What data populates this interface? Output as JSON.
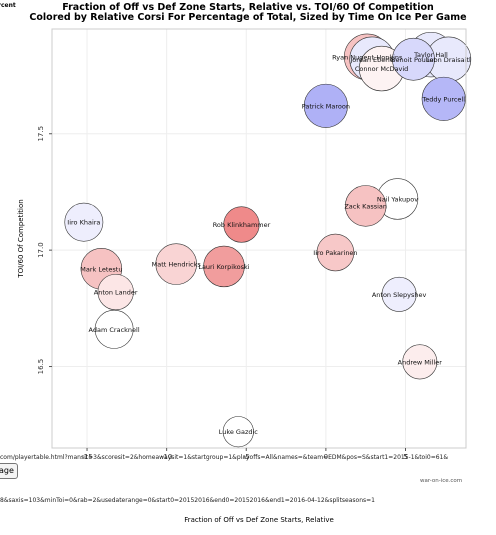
{
  "page": {
    "title_line1": "Fraction of Off vs Def Zone Starts, Relative vs. TOI/60 Of Competition",
    "title_line2": "Colored by Relative Corsi For Percentage of Total, Sized by Time On Ice Per Game",
    "legend_fragment": "rcent",
    "url_line1": "com/playertable.html?mansit=3&scoresit=2&homeawaysit=1&startgroup=1&playoffs=All&names=&team=EDM&pos=S&start1=2015-1&toi0=61&",
    "url_line2": "8&saxis=103&minToi=0&rab=2&usedaterange=0&start0=20152016&end0=20152016&end1=2016-04-12&splitseasons=1",
    "button_text": "age",
    "credit": "war-on-ice.com"
  },
  "chart_data": {
    "type": "scatter",
    "title": "Fraction of Off vs Def Zone Starts, Relative vs. TOI/60 Of Competition",
    "subtitle": "Colored by Relative Corsi For Percentage of Total, Sized by Time On Ice Per Game",
    "xlabel": "Fraction of Off vs Def Zone Starts, Relative",
    "ylabel": "TOI/60 Of Competition",
    "xlim": [
      -17.2,
      8.8
    ],
    "ylim": [
      16.15,
      17.95
    ],
    "xticks": [
      -15,
      -10,
      -5,
      0,
      5
    ],
    "yticks": [
      16.5,
      17.0,
      17.5
    ],
    "colors": {
      "positive": "#2f35e8",
      "negative": "#e02020",
      "neutral": "#ffffff"
    },
    "points": [
      {
        "name": "Ryan Nugent-Hopkins",
        "x": 2.6,
        "y": 17.83,
        "corsi": -0.5,
        "size": 1.0
      },
      {
        "name": "Jordan Eberle",
        "x": 2.9,
        "y": 17.82,
        "corsi": 0.2,
        "size": 0.95
      },
      {
        "name": "Connor McDavid",
        "x": 3.5,
        "y": 17.78,
        "corsi": -0.1,
        "size": 0.95
      },
      {
        "name": "Benoit Pouliot",
        "x": 5.5,
        "y": 17.82,
        "corsi": 0.35,
        "size": 0.85
      },
      {
        "name": "Taylor Hall",
        "x": 6.6,
        "y": 17.84,
        "corsi": 0.2,
        "size": 0.95
      },
      {
        "name": "Leon Draisaitl",
        "x": 7.7,
        "y": 17.82,
        "corsi": 0.2,
        "size": 0.95
      },
      {
        "name": "Teddy Purcell",
        "x": 7.4,
        "y": 17.65,
        "corsi": 0.65,
        "size": 0.9
      },
      {
        "name": "Patrick Maroon",
        "x": 0.0,
        "y": 17.62,
        "corsi": 0.7,
        "size": 0.9
      },
      {
        "name": "Nail Yakupov",
        "x": 4.5,
        "y": 17.22,
        "corsi": 0.0,
        "size": 0.8
      },
      {
        "name": "Zack Kassian",
        "x": 2.5,
        "y": 17.19,
        "corsi": -0.5,
        "size": 0.8
      },
      {
        "name": "Rob Klinkhammer",
        "x": -5.3,
        "y": 17.11,
        "corsi": -0.95,
        "size": 0.6
      },
      {
        "name": "Iiro Pakarinen",
        "x": 0.6,
        "y": 16.99,
        "corsi": -0.45,
        "size": 0.65
      },
      {
        "name": "Anton Slepyshev",
        "x": 4.6,
        "y": 16.81,
        "corsi": 0.15,
        "size": 0.55
      },
      {
        "name": "Andrew Miller",
        "x": 5.9,
        "y": 16.52,
        "corsi": -0.15,
        "size": 0.55
      },
      {
        "name": "Luke Gazdic",
        "x": -5.5,
        "y": 16.22,
        "corsi": 0.0,
        "size": 0.4
      },
      {
        "name": "Iiro Khaira",
        "x": -15.2,
        "y": 17.12,
        "corsi": 0.15,
        "size": 0.7
      },
      {
        "name": "Mark Letestu",
        "x": -14.1,
        "y": 16.92,
        "corsi": -0.5,
        "size": 0.8
      },
      {
        "name": "Anton Lander",
        "x": -13.2,
        "y": 16.82,
        "corsi": -0.2,
        "size": 0.6
      },
      {
        "name": "Adam Cracknell",
        "x": -13.3,
        "y": 16.66,
        "corsi": 0.0,
        "size": 0.7
      },
      {
        "name": "Matt Hendricks",
        "x": -9.4,
        "y": 16.94,
        "corsi": -0.35,
        "size": 0.8
      },
      {
        "name": "Lauri Korpikoski",
        "x": -6.4,
        "y": 16.93,
        "corsi": -0.8,
        "size": 0.8
      }
    ]
  }
}
